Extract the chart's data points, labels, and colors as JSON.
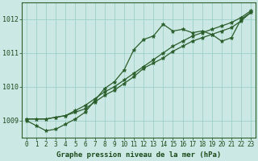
{
  "title": "Graphe pression niveau de la mer (hPa)",
  "x_values": [
    0,
    1,
    2,
    3,
    4,
    5,
    6,
    7,
    8,
    9,
    10,
    11,
    12,
    13,
    14,
    15,
    16,
    17,
    18,
    19,
    20,
    21,
    22,
    23
  ],
  "line1": [
    1009.0,
    1008.85,
    1008.7,
    1008.75,
    1008.9,
    1009.05,
    1009.25,
    1009.6,
    1009.95,
    1010.15,
    1010.5,
    1011.1,
    1011.4,
    1011.5,
    1011.85,
    1011.65,
    1011.7,
    1011.6,
    1011.65,
    1011.55,
    1011.35,
    1011.45,
    1012.0,
    1012.2
  ],
  "line2": [
    1009.05,
    1009.05,
    1009.05,
    1009.1,
    1009.15,
    1009.25,
    1009.35,
    1009.55,
    1009.75,
    1009.9,
    1010.1,
    1010.3,
    1010.55,
    1010.7,
    1010.85,
    1011.05,
    1011.2,
    1011.35,
    1011.45,
    1011.55,
    1011.65,
    1011.75,
    1011.95,
    1012.2
  ],
  "line3": [
    1009.05,
    1009.05,
    1009.05,
    1009.1,
    1009.15,
    1009.3,
    1009.45,
    1009.65,
    1009.85,
    1010.0,
    1010.2,
    1010.4,
    1010.6,
    1010.8,
    1011.0,
    1011.2,
    1011.35,
    1011.5,
    1011.6,
    1011.7,
    1011.8,
    1011.9,
    1012.05,
    1012.25
  ],
  "ylim": [
    1008.5,
    1012.5
  ],
  "yticks": [
    1009,
    1010,
    1011,
    1012
  ],
  "xlim": [
    -0.5,
    23.5
  ],
  "bg_color": "#cce8e4",
  "line_color": "#2a5e2a",
  "grid_color": "#9ecfca",
  "text_color": "#1a4a1a",
  "marker": "*",
  "marker_size": 3.5,
  "linewidth": 0.9,
  "xlabel_fontsize": 6.5,
  "tick_fontsize": 5.5
}
